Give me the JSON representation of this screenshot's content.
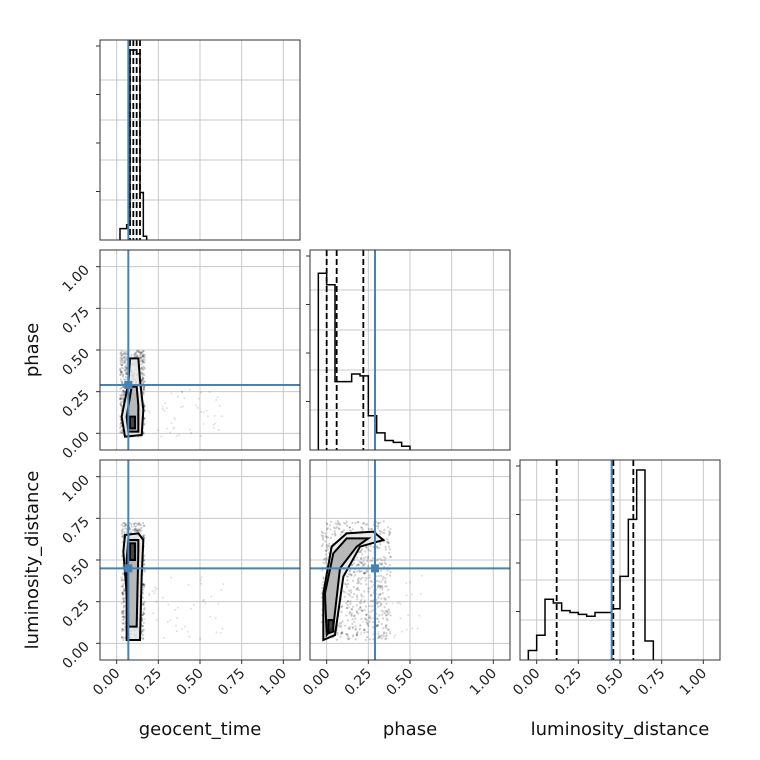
{
  "chart_data": {
    "type": "corner",
    "parameters": [
      "geocent_time",
      "phase",
      "luminosity_distance"
    ],
    "truths": {
      "geocent_time": 0.07,
      "phase": 0.29,
      "luminosity_distance": 0.45
    },
    "xlim": [
      -0.1,
      1.1
    ],
    "ylim": [
      -0.1,
      1.1
    ],
    "x_ticks": [
      "0.00",
      "0.25",
      "0.50",
      "0.75",
      "1.00"
    ],
    "y_ticks": [
      "0.00",
      "0.25",
      "0.50",
      "0.75",
      "1.00"
    ],
    "grid": true,
    "truth_color": "#4682b4",
    "histograms": {
      "geocent_time": {
        "edges": [
          0.02,
          0.06,
          0.08,
          0.1,
          0.12,
          0.14,
          0.16,
          0.18
        ],
        "counts": [
          0.06,
          0.08,
          1.0,
          1.0,
          0.98,
          0.25,
          0.02
        ],
        "quantiles": [
          0.08,
          0.1,
          0.12,
          0.14
        ]
      },
      "phase": {
        "edges": [
          -0.05,
          0.0,
          0.05,
          0.1,
          0.15,
          0.2,
          0.25,
          0.3,
          0.35,
          0.4,
          0.45,
          0.5
        ],
        "counts": [
          0.93,
          0.87,
          0.36,
          0.36,
          0.4,
          0.39,
          0.18,
          0.09,
          0.05,
          0.04,
          0.02
        ],
        "quantiles": [
          0.0,
          0.06,
          0.22
        ]
      },
      "luminosity_distance": {
        "edges": [
          -0.05,
          0.0,
          0.05,
          0.1,
          0.15,
          0.2,
          0.25,
          0.3,
          0.35,
          0.4,
          0.45,
          0.5,
          0.55,
          0.6,
          0.65,
          0.7
        ],
        "counts": [
          0.05,
          0.13,
          0.32,
          0.3,
          0.26,
          0.25,
          0.24,
          0.23,
          0.25,
          0.25,
          0.27,
          0.44,
          0.74,
          1.0,
          0.1
        ],
        "quantiles": [
          0.12,
          0.46,
          0.58
        ]
      }
    },
    "scatter": {
      "phase_vs_geocent_time": {
        "center": [
          0.1,
          0.15
        ],
        "contours": [
          [
            [
              0.05,
              -0.02
            ],
            [
              0.15,
              -0.01
            ],
            [
              0.16,
              0.14
            ],
            [
              0.14,
              0.32
            ],
            [
              0.13,
              0.45
            ],
            [
              0.08,
              0.45
            ],
            [
              0.07,
              0.3
            ],
            [
              0.03,
              0.1
            ]
          ],
          [
            [
              0.07,
              0.01
            ],
            [
              0.13,
              0.01
            ],
            [
              0.13,
              0.17
            ],
            [
              0.12,
              0.28
            ],
            [
              0.09,
              0.28
            ],
            [
              0.06,
              0.1
            ]
          ],
          [
            [
              0.08,
              0.03
            ],
            [
              0.11,
              0.03
            ],
            [
              0.11,
              0.1
            ],
            [
              0.08,
              0.1
            ]
          ]
        ]
      },
      "luminosity_distance_vs_geocent_time": {
        "contours": [
          [
            [
              0.06,
              0.02
            ],
            [
              0.14,
              0.02
            ],
            [
              0.15,
              0.4
            ],
            [
              0.16,
              0.62
            ],
            [
              0.13,
              0.66
            ],
            [
              0.05,
              0.65
            ],
            [
              0.04,
              0.55
            ],
            [
              0.06,
              0.3
            ]
          ],
          [
            [
              0.07,
              0.1
            ],
            [
              0.12,
              0.1
            ],
            [
              0.13,
              0.55
            ],
            [
              0.13,
              0.62
            ],
            [
              0.07,
              0.62
            ],
            [
              0.06,
              0.5
            ]
          ],
          [
            [
              0.08,
              0.5
            ],
            [
              0.11,
              0.5
            ],
            [
              0.11,
              0.6
            ],
            [
              0.08,
              0.6
            ]
          ]
        ]
      },
      "luminosity_distance_vs_phase": {
        "contours": [
          [
            [
              -0.02,
              0.02
            ],
            [
              0.05,
              0.05
            ],
            [
              0.1,
              0.4
            ],
            [
              0.2,
              0.58
            ],
            [
              0.34,
              0.62
            ],
            [
              0.28,
              0.67
            ],
            [
              0.12,
              0.66
            ],
            [
              0.03,
              0.58
            ],
            [
              -0.02,
              0.3
            ]
          ],
          [
            [
              0.0,
              0.05
            ],
            [
              0.04,
              0.1
            ],
            [
              0.08,
              0.45
            ],
            [
              0.18,
              0.58
            ],
            [
              0.25,
              0.63
            ],
            [
              0.12,
              0.63
            ],
            [
              0.04,
              0.54
            ],
            [
              -0.01,
              0.3
            ]
          ],
          [
            [
              0.01,
              0.06
            ],
            [
              0.04,
              0.07
            ],
            [
              0.04,
              0.14
            ],
            [
              0.01,
              0.14
            ]
          ]
        ]
      }
    }
  }
}
